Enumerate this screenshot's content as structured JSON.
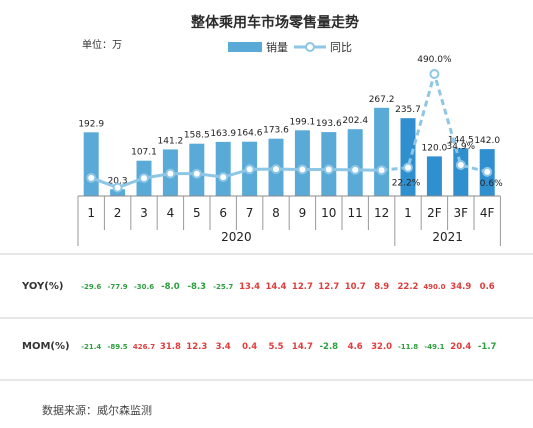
{
  "chart_data": {
    "type": "bar",
    "title": "整体乘用车市场零售量走势",
    "unit_label": "单位：万",
    "legend": {
      "bar": "销量",
      "line": "同比"
    },
    "categories": [
      "1",
      "2",
      "3",
      "4",
      "5",
      "6",
      "7",
      "8",
      "9",
      "10",
      "11",
      "12",
      "1",
      "2F",
      "3F",
      "4F"
    ],
    "year_groups": [
      {
        "label": "2020",
        "from": 0,
        "to": 11
      },
      {
        "label": "2021",
        "from": 12,
        "to": 15
      }
    ],
    "series": [
      {
        "name": "销量",
        "type": "bar",
        "values": [
          192.9,
          20.3,
          107.1,
          141.2,
          158.5,
          163.9,
          164.6,
          173.6,
          199.1,
          193.6,
          202.4,
          267.2,
          235.7,
          120.0,
          144.5,
          142.0
        ],
        "labels": [
          "192.9",
          "20.3",
          "107.1",
          "141.2",
          "158.5",
          "163.9",
          "164.6",
          "173.6",
          "199.1",
          "193.6",
          "202.4",
          "267.2",
          "235.7",
          "120.0",
          "144.5",
          "142.0"
        ]
      },
      {
        "name": "同比",
        "type": "line",
        "values": [
          -29.6,
          -77.9,
          -30.6,
          -8.0,
          -8.3,
          -25.7,
          13.4,
          14.4,
          12.7,
          12.7,
          10.7,
          8.9,
          22.2,
          490.0,
          34.9,
          0.6
        ],
        "labels": [
          "",
          "",
          "",
          "",
          "",
          "",
          "",
          "",
          "",
          "",
          "",
          "",
          "22.2%",
          "490.0%",
          "34.9%",
          "0.6%"
        ]
      }
    ],
    "colors": {
      "bar_2020": "#5aaad8",
      "bar_2021": "#2f8fcf",
      "line": "#8ec6e6",
      "positive": "#e03c3c",
      "negative": "#2e9e3e"
    },
    "table": {
      "rows": [
        {
          "header": "YOY(%)",
          "values": [
            "-29.6",
            "-77.9",
            "-30.6",
            "-8.0",
            "-8.3",
            "-25.7",
            "13.4",
            "14.4",
            "12.7",
            "12.7",
            "10.7",
            "8.9",
            "22.2",
            "490.0",
            "34.9",
            "0.6"
          ]
        },
        {
          "header": "MOM(%)",
          "values": [
            "-21.4",
            "-89.5",
            "426.7",
            "31.8",
            "12.3",
            "3.4",
            "0.4",
            "5.5",
            "14.7",
            "-2.8",
            "4.6",
            "32.0",
            "-11.8",
            "-49.1",
            "20.4",
            "-1.7"
          ]
        }
      ]
    },
    "source": "数据来源：威尔森监测"
  }
}
